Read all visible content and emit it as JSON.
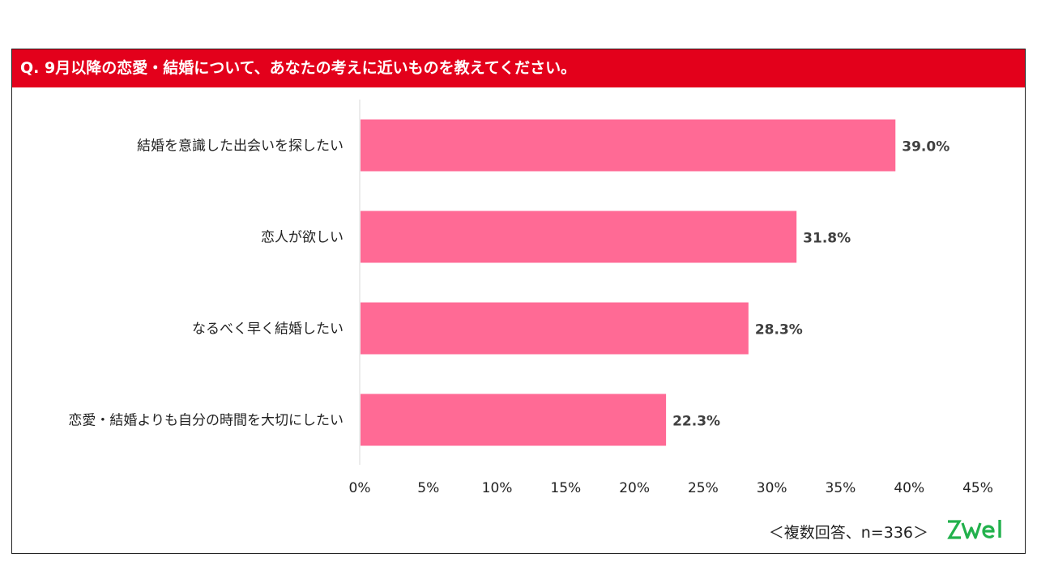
{
  "header": {
    "question": "Q. 9月以降の恋愛・結婚について、あなたの考えに近いものを教えてください。"
  },
  "chart_data": {
    "type": "bar",
    "orientation": "horizontal",
    "categories": [
      "結婚を意識した出会いを探したい",
      "恋人が欲しい",
      "なるべく早く結婚したい",
      "恋愛・結婚よりも自分の時間を大切にしたい"
    ],
    "values": [
      39.0,
      31.8,
      28.3,
      22.3
    ],
    "value_labels": [
      "39.0%",
      "31.8%",
      "28.3%",
      "22.3%"
    ],
    "xlim": [
      0,
      45
    ],
    "ticks": [
      0,
      5,
      10,
      15,
      20,
      25,
      30,
      35,
      40,
      45
    ],
    "tick_labels": [
      "0%",
      "5%",
      "10%",
      "15%",
      "20%",
      "25%",
      "30%",
      "35%",
      "40%",
      "45%"
    ],
    "bar_color": "#ff6a95",
    "grid": false,
    "legend": "none"
  },
  "footnote": "＜複数回答、n=336＞",
  "logo": {
    "text": "zwei",
    "color": "#22b14c"
  },
  "colors": {
    "header_bg": "#e3001b",
    "header_text": "#ffffff",
    "bar": "#ff6a95"
  }
}
